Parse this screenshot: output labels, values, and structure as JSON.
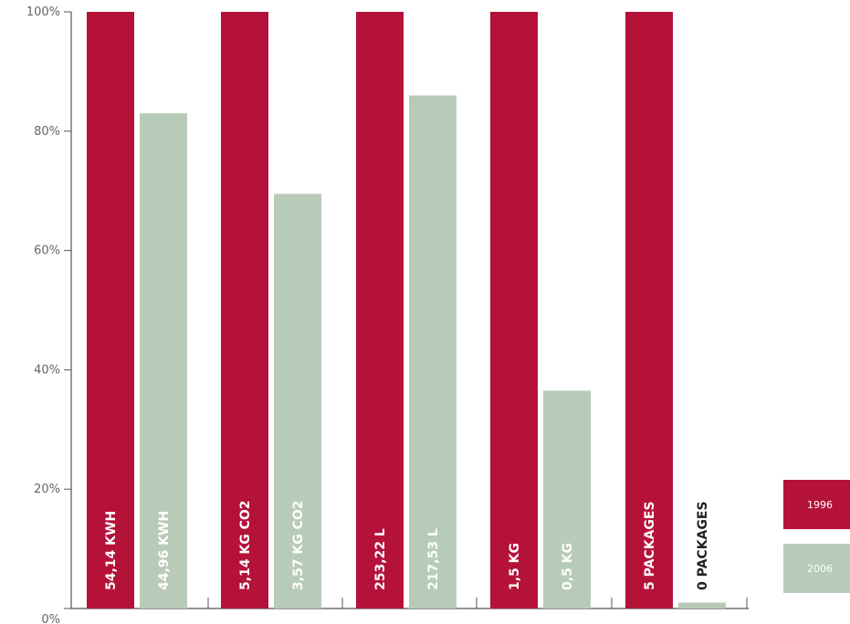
{
  "chart_data": {
    "type": "bar",
    "yticks": [
      "0%",
      "20%",
      "40%",
      "60%",
      "80%",
      "100%"
    ],
    "ylim": [
      0,
      100
    ],
    "groups": 5,
    "series": [
      {
        "name": "1996",
        "color": "#b5123a",
        "values": [
          100,
          100,
          100,
          100,
          100
        ],
        "labels": [
          "54,14  KWH",
          "5,14 KG CO2",
          "253,22 L",
          "1,5 KG",
          "5 PACKAGES"
        ]
      },
      {
        "name": "2006",
        "color": "#b8cbb8",
        "values": [
          83,
          69.5,
          86,
          36.5,
          1
        ],
        "labels": [
          "44,96 KWH",
          "3,57 KG CO2",
          "217,53 L",
          "0,5 KG",
          "0 PACKAGES"
        ]
      }
    ],
    "legend": "right",
    "grid": false
  }
}
